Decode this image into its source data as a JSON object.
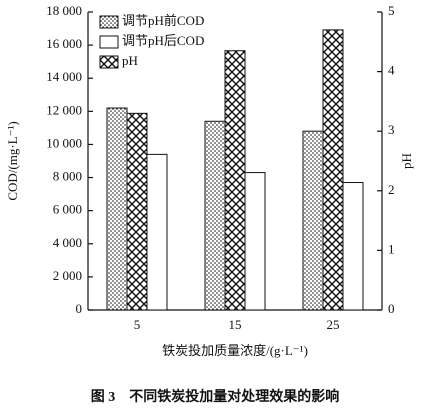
{
  "chart_data": {
    "type": "bar",
    "caption": "图 3　不同铁炭投加量对处理效果的影响",
    "xlabel": "铁炭投加质量浓度/(g·L⁻¹)",
    "ylabel": "COD/(mg·L⁻¹)",
    "y2label": "pH",
    "categories": [
      "5",
      "15",
      "25"
    ],
    "series": [
      {
        "name": "调节pH前COD",
        "color": "#111111",
        "pattern": "dots",
        "values": [
          12200,
          11400,
          10800
        ]
      },
      {
        "name": "调节pH后COD",
        "color": "#111111",
        "pattern": "none",
        "values": [
          9400,
          8300,
          7700
        ]
      },
      {
        "name": "pH",
        "color": "#111111",
        "pattern": "crosshatch",
        "axis": "y2",
        "values": [
          3.3,
          4.35,
          4.7
        ]
      }
    ],
    "ylim": [
      0,
      18000
    ],
    "yticks": [
      0,
      {
        "value": 2000,
        "label": "2 000"
      },
      {
        "value": 4000,
        "label": "4 000"
      },
      {
        "value": 6000,
        "label": "6 000"
      },
      {
        "value": 8000,
        "label": "8 000"
      },
      {
        "value": 10000,
        "label": "10 000"
      },
      {
        "value": 12000,
        "label": "12 000"
      },
      {
        "value": 14000,
        "label": "14 000"
      },
      {
        "value": 16000,
        "label": "16 000"
      },
      {
        "value": 18000,
        "label": "18 000"
      }
    ],
    "y2lim": [
      0,
      5
    ],
    "y2ticks": [
      0,
      1,
      2,
      3,
      4,
      5
    ],
    "legend": "upper left"
  }
}
